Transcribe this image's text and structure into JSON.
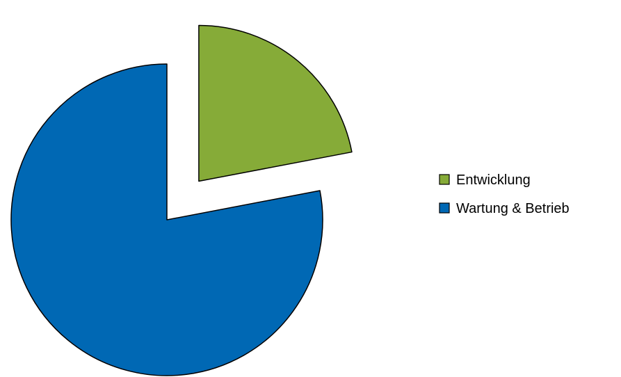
{
  "chart_data": {
    "type": "pie",
    "title": "",
    "slices": [
      {
        "label": "Entwicklung",
        "value": 22,
        "color": "#86ab38",
        "exploded": true
      },
      {
        "label": "Wartung & Betrieb",
        "value": 78,
        "color": "#0068b4",
        "exploded": false
      }
    ],
    "start_angle_deg": 0,
    "direction": "clockwise",
    "legend_position": "right",
    "outline_color": "#000000"
  }
}
